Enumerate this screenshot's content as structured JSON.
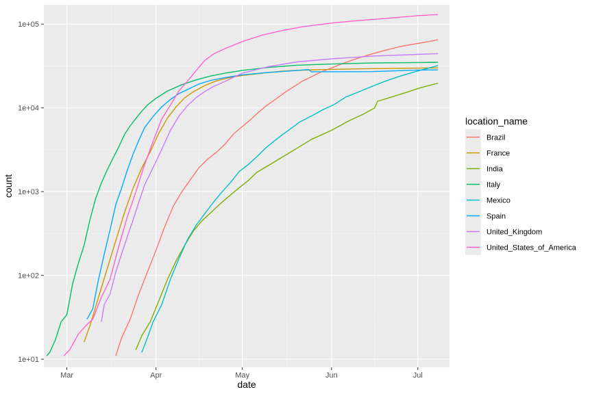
{
  "chart_data": {
    "type": "line",
    "xlabel": "date",
    "ylabel": "count",
    "y_scale": "log10",
    "ylim": [
      8,
      170000
    ],
    "xlim": [
      "2020-02-22",
      "2020-07-12"
    ],
    "x_ticks": [
      {
        "date": "2020-03-01",
        "label": "Mar"
      },
      {
        "date": "2020-04-01",
        "label": "Apr"
      },
      {
        "date": "2020-05-01",
        "label": "May"
      },
      {
        "date": "2020-06-01",
        "label": "Jun"
      },
      {
        "date": "2020-07-01",
        "label": "Jul"
      }
    ],
    "y_ticks": [
      {
        "value": 10,
        "label": "1e+01"
      },
      {
        "value": 100,
        "label": "1e+02"
      },
      {
        "value": 1000,
        "label": "1e+03"
      },
      {
        "value": 10000,
        "label": "1e+04"
      },
      {
        "value": 100000,
        "label": "1e+05"
      }
    ],
    "panel_background": "#ebebeb",
    "grid": true,
    "legend_title": "location_name",
    "legend_position": "right",
    "series": [
      {
        "name": "Brazil",
        "color": "#F8766D",
        "points": [
          [
            "2020-03-18",
            11
          ],
          [
            "2020-03-20",
            18
          ],
          [
            "2020-03-23",
            30
          ],
          [
            "2020-03-26",
            60
          ],
          [
            "2020-03-28",
            90
          ],
          [
            "2020-04-01",
            200
          ],
          [
            "2020-04-04",
            380
          ],
          [
            "2020-04-07",
            670
          ],
          [
            "2020-04-10",
            1000
          ],
          [
            "2020-04-13",
            1400
          ],
          [
            "2020-04-16",
            1950
          ],
          [
            "2020-04-19",
            2450
          ],
          [
            "2020-04-22",
            2950
          ],
          [
            "2020-04-25",
            3700
          ],
          [
            "2020-04-28",
            4900
          ],
          [
            "2020-05-01",
            6000
          ],
          [
            "2020-05-04",
            7300
          ],
          [
            "2020-05-07",
            9100
          ],
          [
            "2020-05-10",
            11000
          ],
          [
            "2020-05-13",
            13000
          ],
          [
            "2020-05-16",
            15500
          ],
          [
            "2020-05-19",
            18000
          ],
          [
            "2020-05-22",
            21000
          ],
          [
            "2020-05-25",
            23500
          ],
          [
            "2020-05-28",
            26500
          ],
          [
            "2020-06-01",
            30000
          ],
          [
            "2020-06-05",
            34000
          ],
          [
            "2020-06-10",
            39000
          ],
          [
            "2020-06-15",
            44000
          ],
          [
            "2020-06-20",
            49000
          ],
          [
            "2020-06-25",
            54000
          ],
          [
            "2020-06-30",
            58000
          ],
          [
            "2020-07-05",
            62000
          ],
          [
            "2020-07-08",
            65000
          ]
        ]
      },
      {
        "name": "France",
        "color": "#CD9600",
        "points": [
          [
            "2020-03-07",
            16
          ],
          [
            "2020-03-09",
            25
          ],
          [
            "2020-03-12",
            55
          ],
          [
            "2020-03-15",
            120
          ],
          [
            "2020-03-18",
            260
          ],
          [
            "2020-03-21",
            560
          ],
          [
            "2020-03-24",
            1100
          ],
          [
            "2020-03-27",
            1900
          ],
          [
            "2020-03-30",
            3000
          ],
          [
            "2020-04-02",
            5000
          ],
          [
            "2020-04-05",
            7600
          ],
          [
            "2020-04-08",
            10300
          ],
          [
            "2020-04-11",
            13200
          ],
          [
            "2020-04-14",
            15600
          ],
          [
            "2020-04-18",
            18500
          ],
          [
            "2020-04-22",
            21000
          ],
          [
            "2020-04-26",
            22700
          ],
          [
            "2020-05-01",
            24400
          ],
          [
            "2020-05-08",
            26000
          ],
          [
            "2020-05-15",
            27500
          ],
          [
            "2020-05-22",
            28250
          ],
          [
            "2020-06-01",
            28800
          ],
          [
            "2020-06-15",
            29400
          ],
          [
            "2020-07-01",
            29800
          ],
          [
            "2020-07-08",
            30000
          ]
        ]
      },
      {
        "name": "India",
        "color": "#7CAE00",
        "points": [
          [
            "2020-03-25",
            13
          ],
          [
            "2020-03-27",
            19
          ],
          [
            "2020-03-30",
            28
          ],
          [
            "2020-04-02",
            50
          ],
          [
            "2020-04-05",
            90
          ],
          [
            "2020-04-08",
            150
          ],
          [
            "2020-04-11",
            230
          ],
          [
            "2020-04-14",
            340
          ],
          [
            "2020-04-17",
            450
          ],
          [
            "2020-04-20",
            560
          ],
          [
            "2020-04-23",
            700
          ],
          [
            "2020-04-26",
            860
          ],
          [
            "2020-04-29",
            1050
          ],
          [
            "2020-05-03",
            1350
          ],
          [
            "2020-05-06",
            1700
          ],
          [
            "2020-05-10",
            2050
          ],
          [
            "2020-05-15",
            2600
          ],
          [
            "2020-05-20",
            3300
          ],
          [
            "2020-05-25",
            4200
          ],
          [
            "2020-06-01",
            5400
          ],
          [
            "2020-06-07",
            7000
          ],
          [
            "2020-06-12",
            8400
          ],
          [
            "2020-06-16",
            10000
          ],
          [
            "2020-06-17",
            12000
          ],
          [
            "2020-06-22",
            13500
          ],
          [
            "2020-06-27",
            15300
          ],
          [
            "2020-07-02",
            17400
          ],
          [
            "2020-07-08",
            19700
          ]
        ]
      },
      {
        "name": "Italy",
        "color": "#00BE67",
        "points": [
          [
            "2020-02-23",
            11
          ],
          [
            "2020-02-24",
            12
          ],
          [
            "2020-02-26",
            17
          ],
          [
            "2020-02-28",
            28
          ],
          [
            "2020-03-01",
            34
          ],
          [
            "2020-03-03",
            80
          ],
          [
            "2020-03-05",
            140
          ],
          [
            "2020-03-07",
            230
          ],
          [
            "2020-03-09",
            460
          ],
          [
            "2020-03-11",
            830
          ],
          [
            "2020-03-13",
            1270
          ],
          [
            "2020-03-15",
            1810
          ],
          [
            "2020-03-17",
            2500
          ],
          [
            "2020-03-19",
            3400
          ],
          [
            "2020-03-21",
            4800
          ],
          [
            "2020-03-23",
            6100
          ],
          [
            "2020-03-25",
            7500
          ],
          [
            "2020-03-27",
            9100
          ],
          [
            "2020-03-29",
            10800
          ],
          [
            "2020-04-01",
            13000
          ],
          [
            "2020-04-05",
            15900
          ],
          [
            "2020-04-10",
            18900
          ],
          [
            "2020-04-15",
            21600
          ],
          [
            "2020-04-20",
            24000
          ],
          [
            "2020-04-25",
            26000
          ],
          [
            "2020-05-01",
            28000
          ],
          [
            "2020-05-10",
            30400
          ],
          [
            "2020-05-20",
            32300
          ],
          [
            "2020-06-01",
            33400
          ],
          [
            "2020-06-15",
            34300
          ],
          [
            "2020-07-01",
            34800
          ],
          [
            "2020-07-08",
            35000
          ]
        ]
      },
      {
        "name": "Mexico",
        "color": "#00BFC4",
        "points": [
          [
            "2020-03-27",
            12
          ],
          [
            "2020-03-29",
            18
          ],
          [
            "2020-03-31",
            28
          ],
          [
            "2020-04-03",
            45
          ],
          [
            "2020-04-06",
            90
          ],
          [
            "2020-04-09",
            160
          ],
          [
            "2020-04-12",
            270
          ],
          [
            "2020-04-15",
            400
          ],
          [
            "2020-04-18",
            550
          ],
          [
            "2020-04-21",
            750
          ],
          [
            "2020-04-24",
            1000
          ],
          [
            "2020-04-27",
            1300
          ],
          [
            "2020-04-30",
            1750
          ],
          [
            "2020-05-03",
            2100
          ],
          [
            "2020-05-06",
            2600
          ],
          [
            "2020-05-09",
            3300
          ],
          [
            "2020-05-12",
            4000
          ],
          [
            "2020-05-15",
            4800
          ],
          [
            "2020-05-18",
            5700
          ],
          [
            "2020-05-21",
            6800
          ],
          [
            "2020-05-25",
            8000
          ],
          [
            "2020-05-29",
            9500
          ],
          [
            "2020-06-02",
            11000
          ],
          [
            "2020-06-06",
            13500
          ],
          [
            "2020-06-10",
            15300
          ],
          [
            "2020-06-15",
            18000
          ],
          [
            "2020-06-20",
            21000
          ],
          [
            "2020-06-25",
            24000
          ],
          [
            "2020-06-30",
            27000
          ],
          [
            "2020-07-05",
            30000
          ],
          [
            "2020-07-08",
            32000
          ]
        ]
      },
      {
        "name": "Spain",
        "color": "#00A9FF",
        "points": [
          [
            "2020-03-08",
            30
          ],
          [
            "2020-03-10",
            40
          ],
          [
            "2020-03-12",
            90
          ],
          [
            "2020-03-14",
            180
          ],
          [
            "2020-03-16",
            350
          ],
          [
            "2020-03-18",
            700
          ],
          [
            "2020-03-20",
            1100
          ],
          [
            "2020-03-22",
            1800
          ],
          [
            "2020-03-24",
            2800
          ],
          [
            "2020-03-26",
            4100
          ],
          [
            "2020-03-28",
            5800
          ],
          [
            "2020-03-31",
            7900
          ],
          [
            "2020-04-03",
            10300
          ],
          [
            "2020-04-06",
            12600
          ],
          [
            "2020-04-09",
            14800
          ],
          [
            "2020-04-12",
            16600
          ],
          [
            "2020-04-16",
            19300
          ],
          [
            "2020-04-20",
            21300
          ],
          [
            "2020-04-25",
            23000
          ],
          [
            "2020-05-01",
            24800
          ],
          [
            "2020-05-10",
            26500
          ],
          [
            "2020-05-20",
            27900
          ],
          [
            "2020-05-24",
            28700
          ],
          [
            "2020-05-25",
            27000
          ],
          [
            "2020-06-15",
            27100
          ],
          [
            "2020-07-01",
            28300
          ],
          [
            "2020-07-08",
            28400
          ]
        ]
      },
      {
        "name": "United_Kingdom",
        "color": "#C77CFF",
        "points": [
          [
            "2020-03-13",
            28
          ],
          [
            "2020-03-14",
            45
          ],
          [
            "2020-03-16",
            60
          ],
          [
            "2020-03-18",
            110
          ],
          [
            "2020-03-20",
            180
          ],
          [
            "2020-03-22",
            290
          ],
          [
            "2020-03-24",
            460
          ],
          [
            "2020-03-26",
            750
          ],
          [
            "2020-03-28",
            1200
          ],
          [
            "2020-03-31",
            1950
          ],
          [
            "2020-04-03",
            3200
          ],
          [
            "2020-04-06",
            5400
          ],
          [
            "2020-04-09",
            8000
          ],
          [
            "2020-04-12",
            10700
          ],
          [
            "2020-04-15",
            13300
          ],
          [
            "2020-04-18",
            15700
          ],
          [
            "2020-04-21",
            18000
          ],
          [
            "2020-04-25",
            20700
          ],
          [
            "2020-05-01",
            26000
          ],
          [
            "2020-05-10",
            31000
          ],
          [
            "2020-05-20",
            35400
          ],
          [
            "2020-06-01",
            38500
          ],
          [
            "2020-06-15",
            41400
          ],
          [
            "2020-07-01",
            43500
          ],
          [
            "2020-07-08",
            44400
          ]
        ]
      },
      {
        "name": "United_States_of_America",
        "color": "#FF61CC",
        "points": [
          [
            "2020-02-29",
            11
          ],
          [
            "2020-03-02",
            13
          ],
          [
            "2020-03-05",
            20
          ],
          [
            "2020-03-08",
            26
          ],
          [
            "2020-03-10",
            30
          ],
          [
            "2020-03-13",
            55
          ],
          [
            "2020-03-16",
            90
          ],
          [
            "2020-03-19",
            220
          ],
          [
            "2020-03-22",
            500
          ],
          [
            "2020-03-25",
            1000
          ],
          [
            "2020-03-28",
            2100
          ],
          [
            "2020-03-31",
            4000
          ],
          [
            "2020-04-03",
            7400
          ],
          [
            "2020-04-06",
            10800
          ],
          [
            "2020-04-09",
            16000
          ],
          [
            "2020-04-12",
            21000
          ],
          [
            "2020-04-15",
            28000
          ],
          [
            "2020-04-18",
            37000
          ],
          [
            "2020-04-21",
            44000
          ],
          [
            "2020-04-25",
            51000
          ],
          [
            "2020-05-01",
            62000
          ],
          [
            "2020-05-08",
            74000
          ],
          [
            "2020-05-15",
            84000
          ],
          [
            "2020-05-22",
            93000
          ],
          [
            "2020-06-01",
            103000
          ],
          [
            "2020-06-10",
            110000
          ],
          [
            "2020-06-20",
            117000
          ],
          [
            "2020-07-01",
            126000
          ],
          [
            "2020-07-08",
            130000
          ]
        ]
      }
    ]
  }
}
